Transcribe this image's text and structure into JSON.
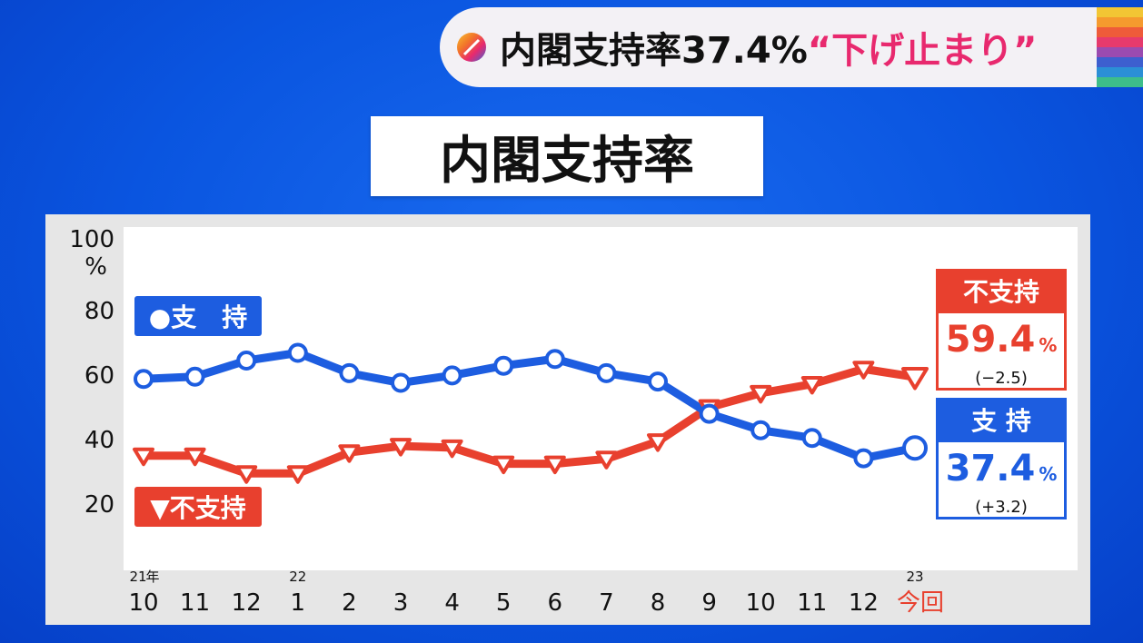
{
  "headline": {
    "main": "内閣支持率37.4%",
    "accent": "“下げ止まり”"
  },
  "title": "内閣支持率",
  "colors": {
    "support": "#1d5de0",
    "nonsupport": "#e8402e",
    "headline_accent": "#e8296e"
  },
  "legend": {
    "support": "●支　持",
    "nonsupport": "▼不支持"
  },
  "callouts": {
    "nonsupport": {
      "label": "不支持",
      "value": "59.4",
      "unit": "%",
      "change": "(−2.5)"
    },
    "support": {
      "label": "支 持",
      "value": "37.4",
      "unit": "%",
      "change": "(+3.2)"
    }
  },
  "chart_data": {
    "type": "line",
    "title": "内閣支持率",
    "ylabel_unit": "%",
    "ylim": [
      0,
      100
    ],
    "yticks": [
      "20",
      "40",
      "60",
      "80",
      "100"
    ],
    "categories": [
      "10",
      "11",
      "12",
      "1",
      "2",
      "3",
      "4",
      "5",
      "6",
      "7",
      "8",
      "9",
      "10",
      "11",
      "12",
      "今回"
    ],
    "year_marks": [
      {
        "index": 0,
        "year": "21",
        "suffix": "年"
      },
      {
        "index": 3,
        "year": "22",
        "suffix": ""
      },
      {
        "index": 15,
        "year": "23",
        "suffix": ""
      }
    ],
    "series": [
      {
        "name": "支持",
        "marker": "circle",
        "color": "#1d5de0",
        "values": [
          58.8,
          59.5,
          64.5,
          66.9,
          60.6,
          57.6,
          59.9,
          62.9,
          65.0,
          60.6,
          58.0,
          48.0,
          42.9,
          40.5,
          34.2,
          37.4
        ]
      },
      {
        "name": "不支持",
        "marker": "triangle-down",
        "color": "#e8402e",
        "values": [
          35.0,
          35.0,
          29.5,
          29.5,
          36.0,
          38.0,
          37.5,
          32.5,
          32.5,
          34.0,
          39.4,
          50.0,
          54.4,
          57.2,
          61.9,
          59.4
        ]
      }
    ],
    "grid": false,
    "legend_position": "left"
  }
}
